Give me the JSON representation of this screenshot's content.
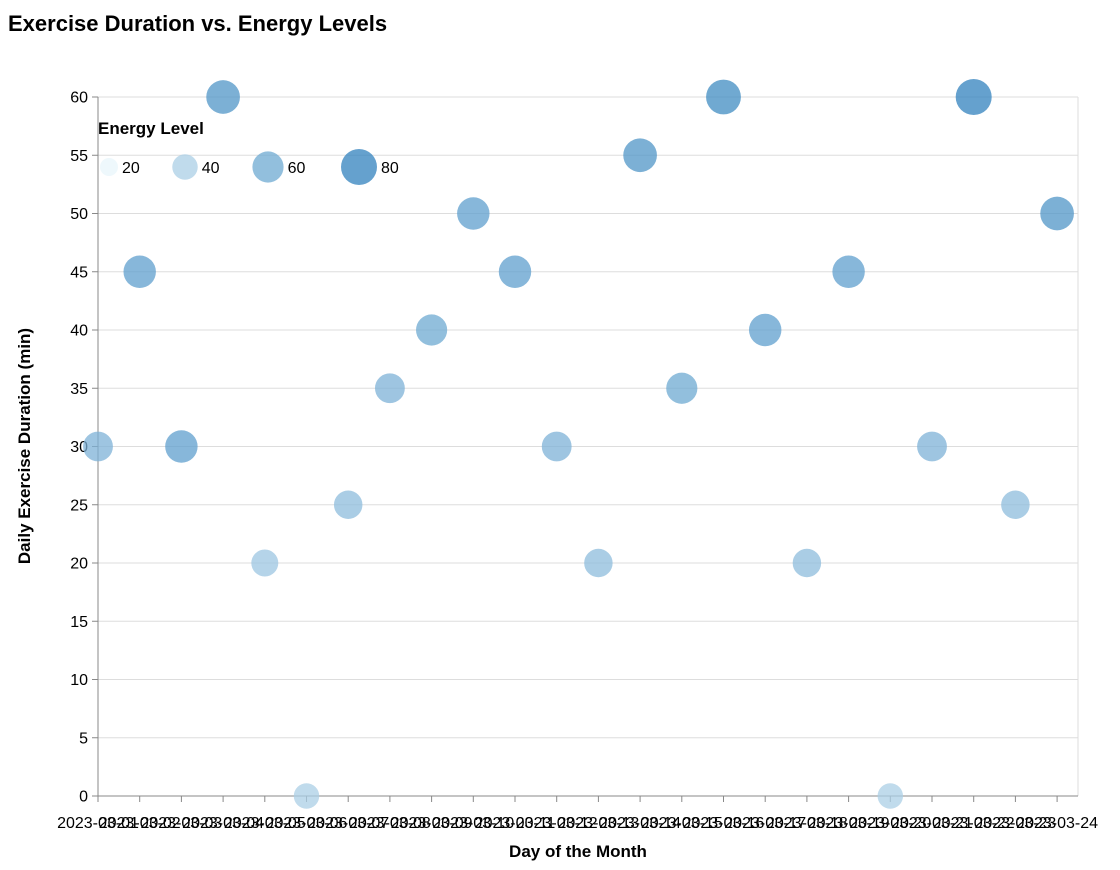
{
  "chart_data": {
    "type": "scatter",
    "title": "Exercise Duration vs. Energy Levels",
    "xlabel": "Day of the Month",
    "ylabel": "Daily Exercise Duration (min)",
    "ylim": [
      0,
      60
    ],
    "y_ticks": [
      0,
      5,
      10,
      15,
      20,
      25,
      30,
      35,
      40,
      45,
      50,
      55,
      60
    ],
    "grid": true,
    "legend": {
      "title": "Energy Level",
      "position": "top-left",
      "values": [
        20,
        40,
        60,
        80
      ]
    },
    "size_domain": [
      20,
      80
    ],
    "color_range": [
      "#e8f6fb",
      "#3182bd"
    ],
    "x": [
      "2023-03-01",
      "2023-03-02",
      "2023-03-03",
      "2023-03-04",
      "2023-03-05",
      "2023-03-06",
      "2023-03-07",
      "2023-03-08",
      "2023-03-09",
      "2023-03-10",
      "2023-03-11",
      "2023-03-12",
      "2023-03-13",
      "2023-03-14",
      "2023-03-15",
      "2023-03-16",
      "2023-03-17",
      "2023-03-18",
      "2023-03-19",
      "2023-03-20",
      "2023-03-21",
      "2023-03-22",
      "2023-03-23",
      "2023-03-24"
    ],
    "y": [
      30,
      45,
      30,
      60,
      20,
      0,
      25,
      35,
      40,
      50,
      45,
      30,
      20,
      55,
      35,
      60,
      40,
      20,
      45,
      0,
      30,
      60,
      25,
      50
    ],
    "energy": [
      55,
      65,
      65,
      70,
      45,
      40,
      50,
      55,
      60,
      65,
      65,
      55,
      50,
      70,
      60,
      75,
      65,
      50,
      65,
      40,
      55,
      80,
      50,
      70
    ]
  }
}
